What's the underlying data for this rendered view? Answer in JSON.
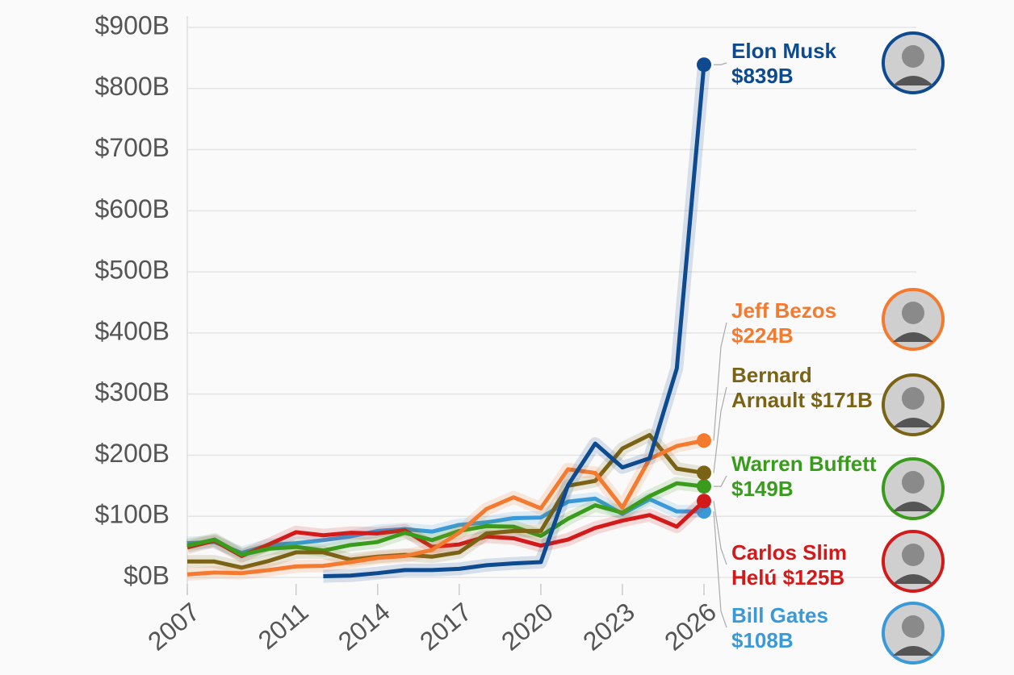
{
  "chart_data": {
    "type": "line",
    "x": [
      2007,
      2008,
      2009,
      2010,
      2011,
      2012,
      2013,
      2014,
      2015,
      2016,
      2017,
      2018,
      2019,
      2020,
      2021,
      2022,
      2023,
      2024,
      2025,
      2026
    ],
    "xlim": [
      2007,
      2026
    ],
    "xticks": [
      2007,
      2011,
      2014,
      2017,
      2020,
      2023,
      2026
    ],
    "ylim": [
      0,
      900
    ],
    "yticks": [
      {
        "value": 0,
        "label": "$0B"
      },
      {
        "value": 100,
        "label": "$100B"
      },
      {
        "value": 200,
        "label": "$200B"
      },
      {
        "value": 300,
        "label": "$300B"
      },
      {
        "value": 400,
        "label": "$400B"
      },
      {
        "value": 500,
        "label": "$500B"
      },
      {
        "value": 600,
        "label": "$600B"
      },
      {
        "value": 700,
        "label": "$700B"
      },
      {
        "value": 800,
        "label": "$800B"
      },
      {
        "value": 900,
        "label": "$900B"
      }
    ],
    "grid": true,
    "series": [
      {
        "name": "Elon Musk",
        "color": "#0d4a8f",
        "values": [
          null,
          null,
          null,
          null,
          null,
          2,
          3,
          7,
          12,
          12,
          14,
          20,
          23,
          25,
          151,
          219,
          180,
          195,
          342,
          839
        ],
        "value_labels": [
          null,
          null,
          null,
          null,
          null,
          null,
          null,
          null,
          null,
          null,
          null,
          null,
          null,
          null,
          null,
          null,
          null,
          null,
          null,
          "$839B"
        ]
      },
      {
        "name": "Jeff Bezos",
        "color": "#f47a30",
        "values": [
          5,
          8,
          7,
          12,
          18,
          19,
          25,
          32,
          35,
          45,
          73,
          112,
          131,
          113,
          177,
          171,
          114,
          194,
          215,
          224
        ],
        "value_labels": [
          null,
          null,
          null,
          null,
          null,
          null,
          null,
          null,
          null,
          null,
          null,
          null,
          null,
          null,
          null,
          null,
          null,
          null,
          null,
          "$224B"
        ]
      },
      {
        "name": "Bernard Arnault",
        "color": "#7a6314",
        "values": [
          26,
          26,
          16,
          27,
          41,
          41,
          29,
          34,
          37,
          34,
          41,
          72,
          76,
          76,
          150,
          158,
          211,
          233,
          178,
          171
        ],
        "value_labels": [
          null,
          null,
          null,
          null,
          null,
          null,
          null,
          null,
          null,
          null,
          null,
          null,
          null,
          null,
          null,
          null,
          null,
          null,
          null,
          "$171B"
        ]
      },
      {
        "name": "Warren Buffett",
        "color": "#3a9c1c",
        "values": [
          52,
          62,
          37,
          47,
          50,
          44,
          53,
          58,
          73,
          61,
          76,
          84,
          83,
          68,
          96,
          118,
          106,
          133,
          154,
          149
        ],
        "value_labels": [
          null,
          null,
          null,
          null,
          null,
          null,
          null,
          null,
          null,
          null,
          null,
          null,
          null,
          null,
          null,
          null,
          null,
          null,
          null,
          "$149B"
        ]
      },
      {
        "name": "Carlos Slim Helú",
        "color": "#d21a1a",
        "values": [
          49,
          60,
          35,
          54,
          74,
          69,
          73,
          72,
          77,
          50,
          54,
          67,
          64,
          52,
          62,
          81,
          93,
          102,
          83,
          125
        ],
        "value_labels": [
          null,
          null,
          null,
          null,
          null,
          null,
          null,
          null,
          null,
          null,
          null,
          null,
          null,
          null,
          null,
          null,
          null,
          null,
          null,
          "$125B"
        ]
      },
      {
        "name": "Bill Gates",
        "color": "#3a9ad9",
        "values": [
          56,
          58,
          40,
          53,
          56,
          61,
          67,
          76,
          79,
          75,
          86,
          90,
          97,
          98,
          124,
          129,
          104,
          128,
          108,
          108
        ],
        "value_labels": [
          null,
          null,
          null,
          null,
          null,
          null,
          null,
          null,
          null,
          null,
          null,
          null,
          null,
          null,
          null,
          null,
          null,
          null,
          null,
          "$108B"
        ]
      }
    ]
  }
}
